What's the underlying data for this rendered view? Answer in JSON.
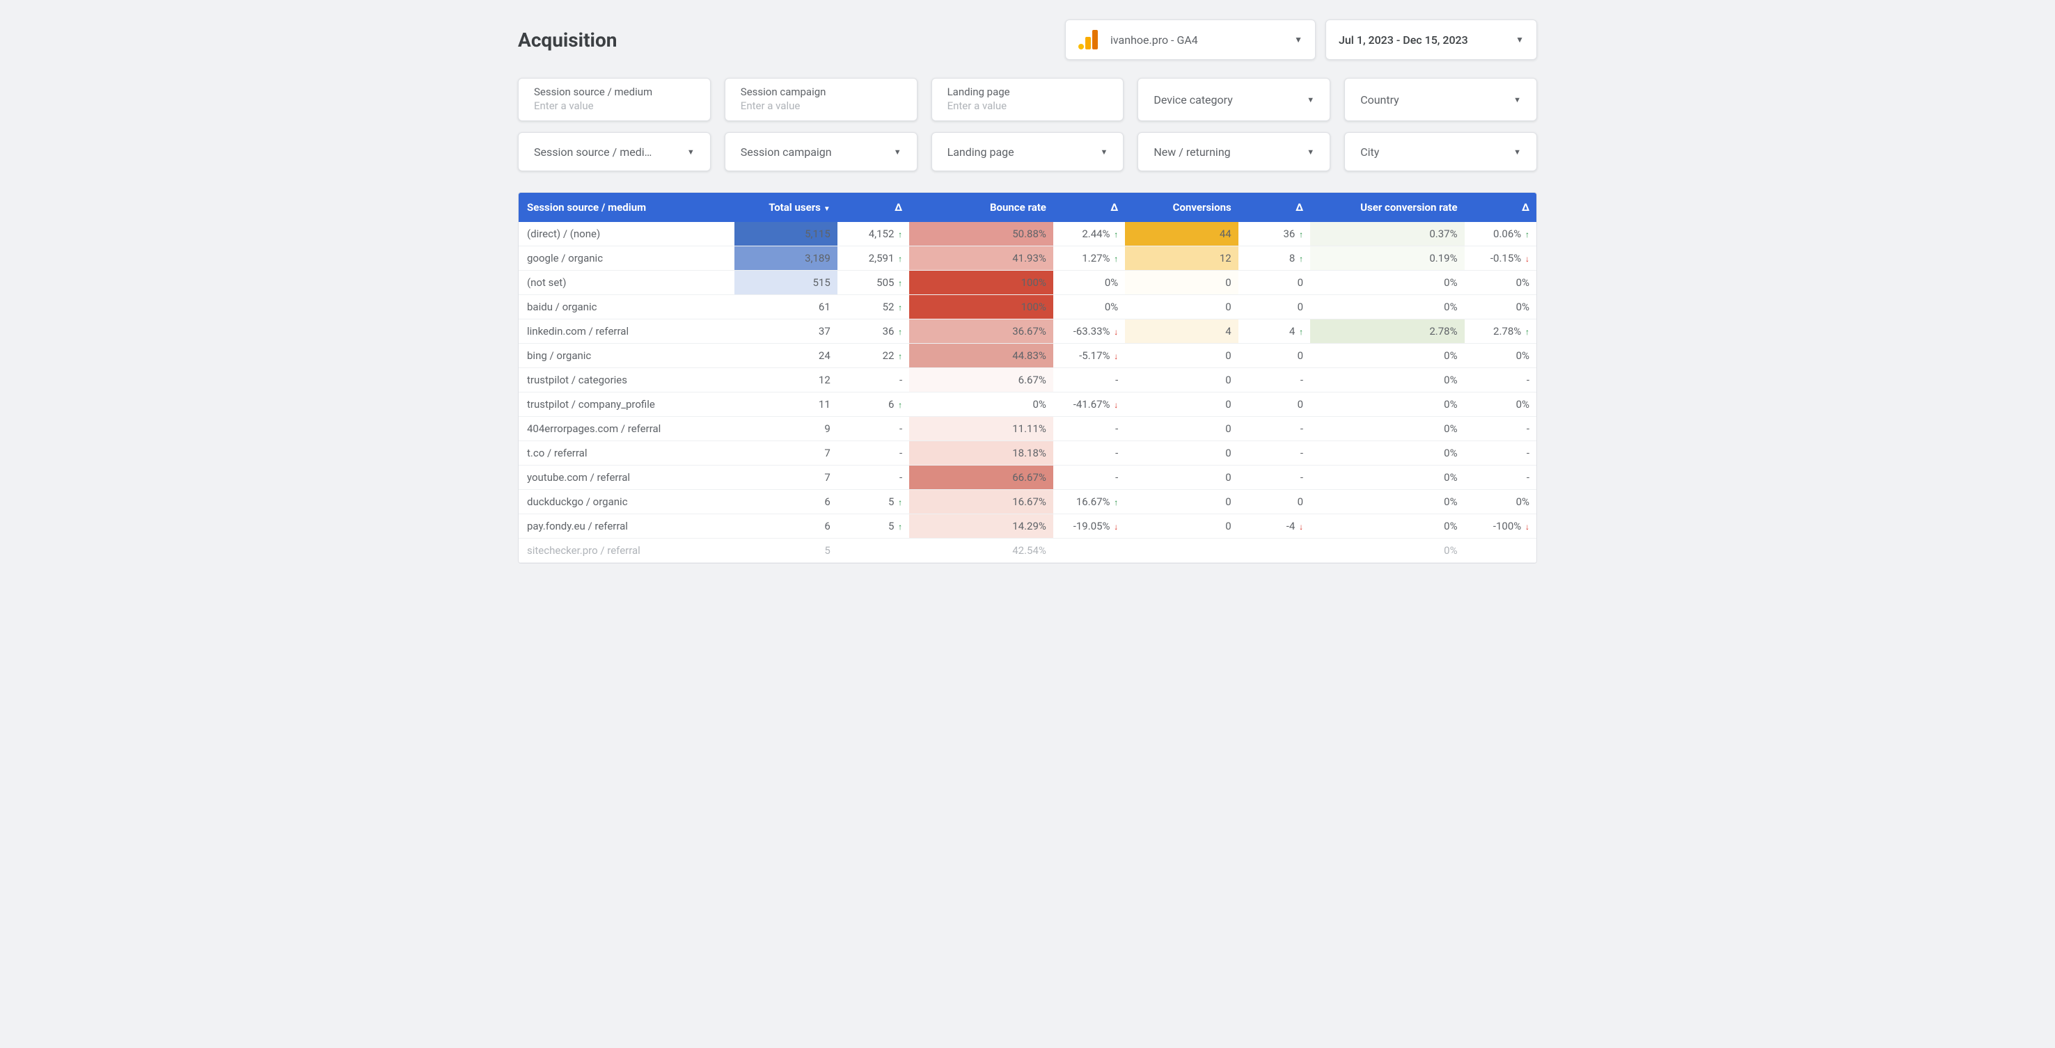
{
  "header": {
    "title": "Acquisition",
    "property": "ivanhoe.pro - GA4",
    "date_range": "Jul 1, 2023 - Dec 15, 2023"
  },
  "filters": {
    "row1": [
      {
        "type": "input",
        "label": "Session source / medium",
        "placeholder": "Enter a value"
      },
      {
        "type": "input",
        "label": "Session campaign",
        "placeholder": "Enter a value"
      },
      {
        "type": "input",
        "label": "Landing page",
        "placeholder": "Enter a value"
      },
      {
        "type": "select",
        "label": "Device category"
      },
      {
        "type": "select",
        "label": "Country"
      }
    ],
    "row2": [
      {
        "type": "select",
        "label": "Session source / medi…"
      },
      {
        "type": "select",
        "label": "Session campaign"
      },
      {
        "type": "select",
        "label": "Landing page"
      },
      {
        "type": "select",
        "label": "New / returning"
      },
      {
        "type": "select",
        "label": "City"
      }
    ]
  },
  "table": {
    "columns": [
      {
        "key": "source",
        "label": "Session source / medium",
        "align": "left"
      },
      {
        "key": "total_users",
        "label": "Total users",
        "sorted": true
      },
      {
        "key": "total_users_delta",
        "label": "Δ"
      },
      {
        "key": "bounce_rate",
        "label": "Bounce rate"
      },
      {
        "key": "bounce_delta",
        "label": "Δ"
      },
      {
        "key": "conversions",
        "label": "Conversions"
      },
      {
        "key": "conversions_delta",
        "label": "Δ"
      },
      {
        "key": "ucr",
        "label": "User conversion rate"
      },
      {
        "key": "ucr_delta",
        "label": "Δ"
      }
    ],
    "heat_colors": {
      "total_users": [
        "#4472c4",
        "#7a9ad6",
        "#dbe4f5",
        "",
        "",
        "",
        "",
        "",
        "",
        "",
        "",
        "",
        "",
        ""
      ],
      "bounce": [
        "#e29a93",
        "#eab1a9",
        "#cf4c3a",
        "#cf4c3a",
        "#e8b0a8",
        "#e2a299",
        "#fdf6f5",
        "#ffffff",
        "#fbece9",
        "#f8ddd7",
        "#dc8b80",
        "#f8e0da",
        "#f9e4df",
        ""
      ],
      "conversions": [
        "#f0b429",
        "#fbe0a1",
        "#fffdf7",
        "#ffffff",
        "#fdf5e3",
        "#ffffff",
        "#ffffff",
        "#ffffff",
        "#ffffff",
        "#ffffff",
        "#ffffff",
        "#ffffff",
        "#ffffff",
        ""
      ],
      "ucr": [
        "#f2f6ee",
        "#f7faf4",
        "#ffffff",
        "#ffffff",
        "#e5eedc",
        "#ffffff",
        "#ffffff",
        "#ffffff",
        "#ffffff",
        "#ffffff",
        "#ffffff",
        "#ffffff",
        "#ffffff",
        ""
      ]
    },
    "rows": [
      {
        "source": "(direct) / (none)",
        "total_users": "5,115",
        "tu_d": "4,152",
        "tu_dir": "up",
        "bounce": "50.88%",
        "b_d": "2.44%",
        "b_dir": "up",
        "conv": "44",
        "c_d": "36",
        "c_dir": "up",
        "ucr": "0.37%",
        "u_d": "0.06%",
        "u_dir": "up"
      },
      {
        "source": "google / organic",
        "total_users": "3,189",
        "tu_d": "2,591",
        "tu_dir": "up",
        "bounce": "41.93%",
        "b_d": "1.27%",
        "b_dir": "up",
        "conv": "12",
        "c_d": "8",
        "c_dir": "up",
        "ucr": "0.19%",
        "u_d": "-0.15%",
        "u_dir": "down"
      },
      {
        "source": "(not set)",
        "total_users": "515",
        "tu_d": "505",
        "tu_dir": "up",
        "bounce": "100%",
        "b_d": "0%",
        "b_dir": "",
        "conv": "0",
        "c_d": "0",
        "c_dir": "",
        "ucr": "0%",
        "u_d": "0%",
        "u_dir": ""
      },
      {
        "source": "baidu / organic",
        "total_users": "61",
        "tu_d": "52",
        "tu_dir": "up",
        "bounce": "100%",
        "b_d": "0%",
        "b_dir": "",
        "conv": "0",
        "c_d": "0",
        "c_dir": "",
        "ucr": "0%",
        "u_d": "0%",
        "u_dir": ""
      },
      {
        "source": "linkedin.com / referral",
        "total_users": "37",
        "tu_d": "36",
        "tu_dir": "up",
        "bounce": "36.67%",
        "b_d": "-63.33%",
        "b_dir": "down",
        "conv": "4",
        "c_d": "4",
        "c_dir": "up",
        "ucr": "2.78%",
        "u_d": "2.78%",
        "u_dir": "up"
      },
      {
        "source": "bing / organic",
        "total_users": "24",
        "tu_d": "22",
        "tu_dir": "up",
        "bounce": "44.83%",
        "b_d": "-5.17%",
        "b_dir": "down",
        "conv": "0",
        "c_d": "0",
        "c_dir": "",
        "ucr": "0%",
        "u_d": "0%",
        "u_dir": ""
      },
      {
        "source": "trustpilot / categories",
        "total_users": "12",
        "tu_d": "-",
        "tu_dir": "",
        "bounce": "6.67%",
        "b_d": "-",
        "b_dir": "",
        "conv": "0",
        "c_d": "-",
        "c_dir": "",
        "ucr": "0%",
        "u_d": "-",
        "u_dir": ""
      },
      {
        "source": "trustpilot / company_profile",
        "total_users": "11",
        "tu_d": "6",
        "tu_dir": "up",
        "bounce": "0%",
        "b_d": "-41.67%",
        "b_dir": "down",
        "conv": "0",
        "c_d": "0",
        "c_dir": "",
        "ucr": "0%",
        "u_d": "0%",
        "u_dir": ""
      },
      {
        "source": "404errorpages.com / referral",
        "total_users": "9",
        "tu_d": "-",
        "tu_dir": "",
        "bounce": "11.11%",
        "b_d": "-",
        "b_dir": "",
        "conv": "0",
        "c_d": "-",
        "c_dir": "",
        "ucr": "0%",
        "u_d": "-",
        "u_dir": ""
      },
      {
        "source": "t.co / referral",
        "total_users": "7",
        "tu_d": "-",
        "tu_dir": "",
        "bounce": "18.18%",
        "b_d": "-",
        "b_dir": "",
        "conv": "0",
        "c_d": "-",
        "c_dir": "",
        "ucr": "0%",
        "u_d": "-",
        "u_dir": ""
      },
      {
        "source": "youtube.com / referral",
        "total_users": "7",
        "tu_d": "-",
        "tu_dir": "",
        "bounce": "66.67%",
        "b_d": "-",
        "b_dir": "",
        "conv": "0",
        "c_d": "-",
        "c_dir": "",
        "ucr": "0%",
        "u_d": "-",
        "u_dir": ""
      },
      {
        "source": "duckduckgo / organic",
        "total_users": "6",
        "tu_d": "5",
        "tu_dir": "up",
        "bounce": "16.67%",
        "b_d": "16.67%",
        "b_dir": "up",
        "conv": "0",
        "c_d": "0",
        "c_dir": "",
        "ucr": "0%",
        "u_d": "0%",
        "u_dir": ""
      },
      {
        "source": "pay.fondy.eu / referral",
        "total_users": "6",
        "tu_d": "5",
        "tu_dir": "up",
        "bounce": "14.29%",
        "b_d": "-19.05%",
        "b_dir": "down",
        "conv": "0",
        "c_d": "-4",
        "c_dir": "down",
        "ucr": "0%",
        "u_d": "-100%",
        "u_dir": "down"
      },
      {
        "source": "sitechecker.pro / referral",
        "total_users": "5",
        "tu_d": "",
        "tu_dir": "",
        "bounce": "42.54%",
        "b_d": "",
        "b_dir": "",
        "conv": "",
        "c_d": "",
        "c_dir": "",
        "ucr": "0%",
        "u_d": "",
        "u_dir": ""
      }
    ]
  }
}
